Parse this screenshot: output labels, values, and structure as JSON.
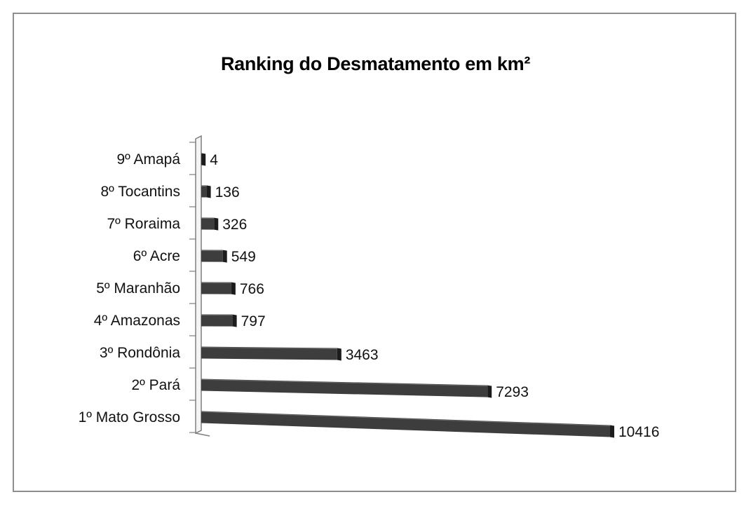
{
  "chart_data": {
    "type": "bar",
    "orientation": "horizontal",
    "title": "Ranking do Desmatamento em km²",
    "categories": [
      "1º Mato Grosso",
      "2º Pará",
      "3º Rondônia",
      "4º Amazonas",
      "5º Maranhão",
      "6º Acre",
      "7º Roraima",
      "8º Tocantins",
      "9º Amapá"
    ],
    "values": [
      10416,
      7293,
      3463,
      797,
      766,
      549,
      326,
      136,
      4
    ],
    "xlim": [
      0,
      10416
    ],
    "grid": false,
    "legend": "none",
    "colors": {
      "bar": "#3d3d3d",
      "bar_side": "#1c1c1c",
      "axis": "#7f7f7f"
    }
  }
}
